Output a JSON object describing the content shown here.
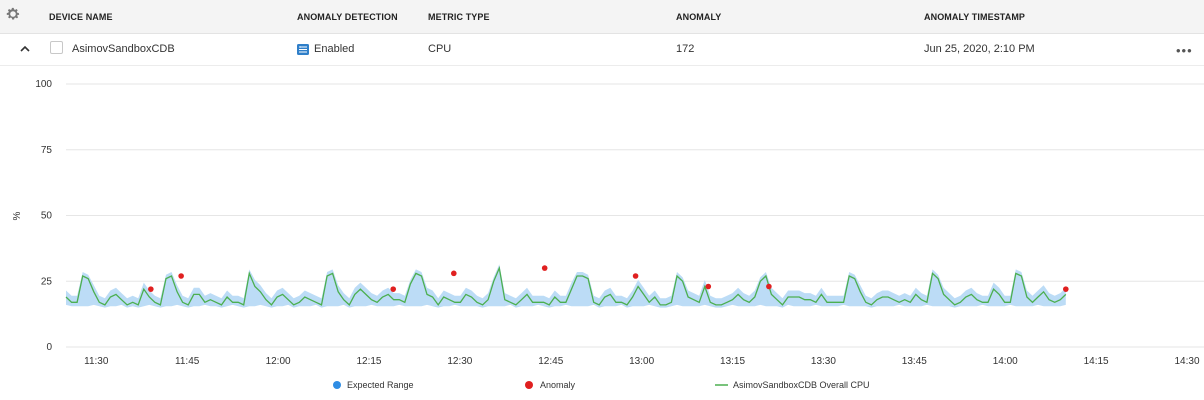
{
  "table": {
    "headers": {
      "device_name": "DEVICE NAME",
      "anomaly_detection": "ANOMALY DETECTION",
      "metric_type": "METRIC TYPE",
      "anomaly": "ANOMALY",
      "anomaly_timestamp": "ANOMALY TIMESTAMP"
    },
    "row": {
      "device_name": "AsimovSandboxCDB",
      "anomaly_detection": "Enabled",
      "metric_type": "CPU",
      "anomaly": "172",
      "anomaly_timestamp": "Jun 25, 2020, 2:10 PM",
      "more_label": "•••"
    },
    "icons": {
      "settings": "gear-icon",
      "expand": "chevron-up-icon",
      "detection": "detection-icon"
    }
  },
  "chart_data": {
    "type": "line",
    "ylabel": "%",
    "ylim": [
      0,
      100
    ],
    "yticks": [
      0,
      25,
      50,
      75,
      100
    ],
    "xlim": [
      0,
      185
    ],
    "xticks": [
      {
        "label": "11:30",
        "t": 5
      },
      {
        "label": "11:45",
        "t": 20
      },
      {
        "label": "12:00",
        "t": 35
      },
      {
        "label": "12:15",
        "t": 50
      },
      {
        "label": "12:30",
        "t": 65
      },
      {
        "label": "12:45",
        "t": 80
      },
      {
        "label": "13:00",
        "t": 95
      },
      {
        "label": "13:15",
        "t": 110
      },
      {
        "label": "13:30",
        "t": 125
      },
      {
        "label": "13:45",
        "t": 140
      },
      {
        "label": "14:00",
        "t": 155
      },
      {
        "label": "14:15",
        "t": 170
      },
      {
        "label": "14:30",
        "t": 185
      }
    ],
    "legend": {
      "expected_range": "Expected Range",
      "anomaly": "Anomaly",
      "series": "AsimovSandboxCDB Overall CPU"
    },
    "colors": {
      "line": "#4caf50",
      "band": "#bcdcf6",
      "anomaly": "#e02020",
      "expected_dot": "#2f8de4",
      "grid": "#e6e6e6"
    },
    "series_values": [
      19,
      17,
      17,
      27,
      26,
      21,
      17,
      16,
      19,
      20,
      18,
      16,
      17,
      16,
      22,
      19,
      17,
      16,
      26,
      27,
      21,
      17,
      16,
      20,
      20,
      17,
      18,
      17,
      16,
      19,
      17,
      17,
      16,
      28,
      23,
      21,
      18,
      16,
      19,
      20,
      18,
      16,
      17,
      19,
      18,
      17,
      16,
      27,
      28,
      21,
      18,
      16,
      20,
      22,
      20,
      18,
      17,
      19,
      20,
      18,
      18,
      17,
      24,
      28,
      27,
      20,
      19,
      16,
      19,
      18,
      17,
      17,
      20,
      19,
      17,
      16,
      18,
      25,
      30,
      18,
      17,
      16,
      18,
      20,
      17,
      17,
      17,
      16,
      19,
      17,
      17,
      22,
      27,
      27,
      26,
      17,
      16,
      19,
      20,
      17,
      17,
      16,
      19,
      23,
      20,
      17,
      19,
      16,
      16,
      17,
      27,
      25,
      19,
      18,
      17,
      23,
      17,
      16,
      16,
      17,
      18,
      20,
      18,
      17,
      19,
      25,
      27,
      20,
      18,
      16,
      19,
      19,
      19,
      18,
      18,
      17,
      20,
      17,
      17,
      17,
      17,
      27,
      26,
      21,
      17,
      16,
      18,
      19,
      19,
      18,
      17,
      18,
      17,
      20,
      18,
      17,
      28,
      26,
      20,
      18,
      16,
      17,
      19,
      20,
      18,
      17,
      17,
      22,
      20,
      17,
      17,
      28,
      27,
      19,
      17,
      19,
      21,
      18,
      17,
      18,
      20
    ],
    "series_t_end": 165,
    "anomalies": [
      {
        "t": 14,
        "value": 22
      },
      {
        "t": 19,
        "value": 27
      },
      {
        "t": 54,
        "value": 22
      },
      {
        "t": 64,
        "value": 28
      },
      {
        "t": 79,
        "value": 30
      },
      {
        "t": 94,
        "value": 27
      },
      {
        "t": 106,
        "value": 23
      },
      {
        "t": 116,
        "value": 23
      },
      {
        "t": 165,
        "value": 22
      }
    ]
  }
}
